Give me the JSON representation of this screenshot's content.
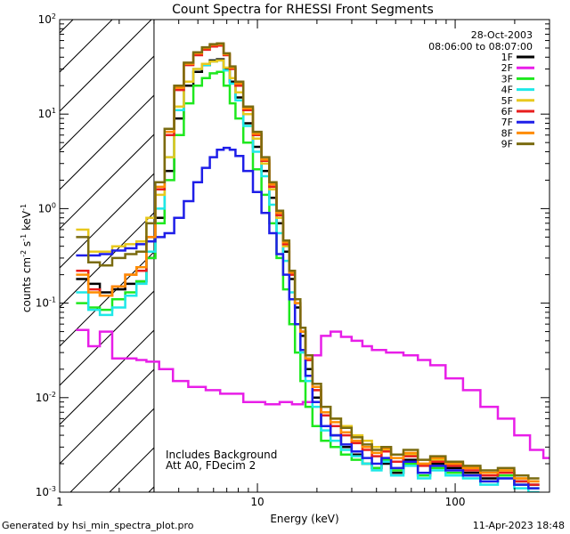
{
  "chart_data": {
    "type": "line",
    "title": "Count Spectra for RHESSI Front Segments",
    "xlabel": "Energy (keV)",
    "ylabel_parts": [
      "counts cm",
      "-2",
      " s",
      "-1",
      " keV",
      "-1"
    ],
    "xscale": "log",
    "yscale": "log",
    "xlim": [
      1,
      300
    ],
    "ylim": [
      0.001,
      100
    ],
    "x_ticks": [
      {
        "value": 1,
        "label": "1"
      },
      {
        "value": 10,
        "label": "10"
      },
      {
        "value": 100,
        "label": "100"
      }
    ],
    "y_ticks": [
      {
        "value": 0.001,
        "base": "10",
        "exp": "-3"
      },
      {
        "value": 0.01,
        "base": "10",
        "exp": "-2"
      },
      {
        "value": 0.1,
        "base": "10",
        "exp": "-1"
      },
      {
        "value": 1,
        "base": "10",
        "exp": "0"
      },
      {
        "value": 10,
        "base": "10",
        "exp": "1"
      },
      {
        "value": 100,
        "base": "10",
        "exp": "2"
      }
    ],
    "hatched_region": {
      "x_from": 1,
      "x_to": 3
    },
    "date_label": "28-Oct-2003",
    "time_label": "08:06:00 to 08:07:00",
    "annotations": [
      "Includes Background",
      "Att A0, FDecim 2"
    ],
    "footer_left": "Generated by hsi_min_spectra_plot.pro",
    "footer_right": "11-Apr-2023 18:48",
    "series": [
      {
        "name": "1F",
        "color": "#000000",
        "x": [
          1.3,
          1.5,
          1.7,
          2.0,
          2.3,
          2.6,
          2.9,
          3.2,
          3.6,
          4.0,
          4.5,
          5.0,
          5.5,
          6.0,
          6.5,
          7.0,
          7.5,
          8.0,
          9.0,
          10,
          11,
          12,
          13,
          14,
          15,
          16,
          17,
          18,
          20,
          22,
          25,
          28,
          32,
          36,
          40,
          45,
          50,
          60,
          70,
          80,
          100,
          120,
          150,
          180,
          220,
          250
        ],
        "y": [
          0.18,
          0.16,
          0.13,
          0.14,
          0.16,
          0.17,
          0.3,
          0.8,
          2.5,
          9,
          20,
          28,
          33,
          37,
          38,
          30,
          22,
          15,
          8,
          4.5,
          2.5,
          1.3,
          0.7,
          0.35,
          0.18,
          0.09,
          0.045,
          0.02,
          0.01,
          0.005,
          0.004,
          0.003,
          0.0025,
          0.002,
          0.0018,
          0.002,
          0.0016,
          0.0022,
          0.0015,
          0.002,
          0.0018,
          0.0016,
          0.0014,
          0.0016,
          0.0013,
          0.0012
        ]
      },
      {
        "name": "2F",
        "color": "#e81ee8",
        "x": [
          1.3,
          1.5,
          1.7,
          2.0,
          2.3,
          2.6,
          2.9,
          3.5,
          4.0,
          5.0,
          6.0,
          7.0,
          8.0,
          9.0,
          10,
          12,
          14,
          16,
          18,
          20,
          22,
          25,
          28,
          32,
          36,
          40,
          50,
          60,
          70,
          80,
          100,
          120,
          150,
          180,
          220,
          260,
          300
        ],
        "y": [
          0.052,
          0.035,
          0.05,
          0.026,
          0.026,
          0.025,
          0.024,
          0.02,
          0.015,
          0.013,
          0.012,
          0.011,
          0.011,
          0.009,
          0.009,
          0.0085,
          0.009,
          0.0085,
          0.009,
          0.028,
          0.045,
          0.05,
          0.044,
          0.04,
          0.035,
          0.032,
          0.03,
          0.028,
          0.025,
          0.022,
          0.016,
          0.012,
          0.008,
          0.006,
          0.004,
          0.0028,
          0.0023
        ]
      },
      {
        "name": "3F",
        "color": "#1ee81e",
        "x": [
          1.3,
          1.5,
          1.7,
          2.0,
          2.3,
          2.6,
          2.9,
          3.2,
          3.6,
          4.0,
          4.5,
          5.0,
          5.5,
          6.0,
          6.5,
          7.0,
          7.5,
          8.0,
          9.0,
          10,
          11,
          12,
          13,
          14,
          15,
          16,
          17,
          18,
          20,
          22,
          25,
          28,
          32,
          36,
          40,
          45,
          50,
          60,
          70,
          80,
          100,
          120,
          150,
          180,
          220,
          250
        ],
        "y": [
          0.1,
          0.09,
          0.085,
          0.11,
          0.13,
          0.17,
          0.3,
          0.7,
          2.0,
          6,
          13,
          20,
          24,
          27,
          28,
          20,
          13,
          9,
          5,
          2.6,
          1.4,
          0.7,
          0.3,
          0.14,
          0.06,
          0.03,
          0.015,
          0.008,
          0.005,
          0.0035,
          0.003,
          0.0025,
          0.0022,
          0.002,
          0.0018,
          0.0022,
          0.0017,
          0.002,
          0.0015,
          0.0018,
          0.0016,
          0.0015,
          0.0013,
          0.0015,
          0.0012,
          0.0011
        ]
      },
      {
        "name": "4F",
        "color": "#1ee8e8",
        "x": [
          1.3,
          1.5,
          1.7,
          2.0,
          2.3,
          2.6,
          2.9,
          3.2,
          3.6,
          4.0,
          4.5,
          5.0,
          5.5,
          6.0,
          6.5,
          7.0,
          7.5,
          8.0,
          9.0,
          10,
          11,
          12,
          13,
          14,
          15,
          16,
          17,
          18,
          20,
          22,
          25,
          28,
          32,
          36,
          40,
          45,
          50,
          60,
          70,
          80,
          100,
          120,
          150,
          180,
          220,
          250
        ],
        "y": [
          0.13,
          0.085,
          0.075,
          0.09,
          0.12,
          0.16,
          0.35,
          1.0,
          3.5,
          11,
          22,
          30,
          33,
          36,
          37,
          29,
          21,
          14,
          7.5,
          4,
          2.2,
          1.1,
          0.55,
          0.28,
          0.13,
          0.06,
          0.03,
          0.015,
          0.008,
          0.0045,
          0.0035,
          0.0028,
          0.0024,
          0.002,
          0.0017,
          0.0021,
          0.0015,
          0.0019,
          0.0014,
          0.0017,
          0.0015,
          0.0014,
          0.0012,
          0.0014,
          0.0011,
          0.001
        ]
      },
      {
        "name": "5F",
        "color": "#e8c81e",
        "x": [
          1.3,
          1.5,
          1.7,
          2.0,
          2.3,
          2.6,
          2.9,
          3.2,
          3.6,
          4.0,
          4.5,
          5.0,
          5.5,
          6.0,
          6.5,
          7.0,
          7.5,
          8.0,
          9.0,
          10,
          11,
          12,
          13,
          14,
          15,
          16,
          17,
          18,
          20,
          22,
          25,
          28,
          32,
          36,
          40,
          45,
          50,
          60,
          70,
          80,
          100,
          120,
          150,
          180,
          220,
          250
        ],
        "y": [
          0.6,
          0.35,
          0.35,
          0.4,
          0.42,
          0.45,
          0.8,
          1.4,
          3.5,
          12,
          22,
          30,
          34,
          36,
          37,
          31,
          24,
          17,
          10,
          5.5,
          3,
          1.6,
          0.8,
          0.4,
          0.2,
          0.1,
          0.05,
          0.025,
          0.012,
          0.007,
          0.006,
          0.005,
          0.004,
          0.0035,
          0.003,
          0.0028,
          0.0025,
          0.0025,
          0.002,
          0.0022,
          0.002,
          0.0018,
          0.0016,
          0.0017,
          0.0014,
          0.0013
        ]
      },
      {
        "name": "6F",
        "color": "#e81e1e",
        "x": [
          1.3,
          1.5,
          1.7,
          2.0,
          2.3,
          2.6,
          2.9,
          3.2,
          3.6,
          4.0,
          4.5,
          5.0,
          5.5,
          6.0,
          6.5,
          7.0,
          7.5,
          8.0,
          9.0,
          10,
          11,
          12,
          13,
          14,
          15,
          16,
          17,
          18,
          20,
          22,
          25,
          28,
          32,
          36,
          40,
          45,
          50,
          60,
          70,
          80,
          100,
          120,
          150,
          180,
          220,
          250
        ],
        "y": [
          0.22,
          0.14,
          0.12,
          0.15,
          0.2,
          0.22,
          0.5,
          1.6,
          6,
          18,
          33,
          42,
          48,
          52,
          53,
          42,
          30,
          20,
          11,
          6,
          3.2,
          1.7,
          0.85,
          0.42,
          0.2,
          0.1,
          0.05,
          0.025,
          0.012,
          0.0065,
          0.005,
          0.004,
          0.0033,
          0.0028,
          0.0024,
          0.0027,
          0.0021,
          0.0024,
          0.0019,
          0.0021,
          0.0019,
          0.0017,
          0.0015,
          0.0016,
          0.0013,
          0.0012
        ]
      },
      {
        "name": "7F",
        "color": "#1e1ee8",
        "x": [
          1.3,
          1.5,
          1.7,
          2.0,
          2.3,
          2.6,
          2.9,
          3.2,
          3.6,
          4.0,
          4.5,
          5.0,
          5.5,
          6.0,
          6.5,
          7.0,
          7.5,
          8.0,
          9.0,
          10,
          11,
          12,
          13,
          14,
          15,
          16,
          17,
          18,
          20,
          22,
          25,
          28,
          32,
          36,
          40,
          45,
          50,
          60,
          70,
          80,
          100,
          120,
          150,
          180,
          220,
          250
        ],
        "y": [
          0.32,
          0.32,
          0.33,
          0.36,
          0.38,
          0.42,
          0.45,
          0.5,
          0.55,
          0.8,
          1.2,
          1.9,
          2.7,
          3.5,
          4.2,
          4.4,
          4.2,
          3.6,
          2.5,
          1.5,
          0.9,
          0.55,
          0.33,
          0.2,
          0.11,
          0.06,
          0.032,
          0.017,
          0.009,
          0.005,
          0.004,
          0.0032,
          0.0027,
          0.0023,
          0.002,
          0.0023,
          0.0018,
          0.0021,
          0.0016,
          0.0019,
          0.0017,
          0.0015,
          0.0013,
          0.0014,
          0.0012,
          0.0011
        ]
      },
      {
        "name": "8F",
        "color": "#ff8c00",
        "x": [
          1.3,
          1.5,
          1.7,
          2.0,
          2.3,
          2.6,
          2.9,
          3.2,
          3.6,
          4.0,
          4.5,
          5.0,
          5.5,
          6.0,
          6.5,
          7.0,
          7.5,
          8.0,
          9.0,
          10,
          11,
          12,
          13,
          14,
          15,
          16,
          17,
          18,
          20,
          22,
          25,
          28,
          32,
          36,
          40,
          45,
          50,
          60,
          70,
          80,
          100,
          120,
          150,
          180,
          220,
          250
        ],
        "y": [
          0.2,
          0.13,
          0.12,
          0.15,
          0.2,
          0.24,
          0.5,
          1.7,
          6.5,
          19,
          34,
          44,
          50,
          54,
          55,
          43,
          31,
          21,
          11.5,
          6.2,
          3.3,
          1.8,
          0.9,
          0.44,
          0.21,
          0.1,
          0.05,
          0.026,
          0.013,
          0.007,
          0.0055,
          0.0043,
          0.0035,
          0.003,
          0.0026,
          0.0029,
          0.0023,
          0.0026,
          0.002,
          0.0023,
          0.002,
          0.0018,
          0.0016,
          0.0017,
          0.0014,
          0.0013
        ]
      },
      {
        "name": "9F",
        "color": "#7a6b10",
        "x": [
          1.3,
          1.5,
          1.7,
          2.0,
          2.3,
          2.6,
          2.9,
          3.2,
          3.6,
          4.0,
          4.5,
          5.0,
          5.5,
          6.0,
          6.5,
          7.0,
          7.5,
          8.0,
          9.0,
          10,
          11,
          12,
          13,
          14,
          15,
          16,
          17,
          18,
          20,
          22,
          25,
          28,
          32,
          36,
          40,
          45,
          50,
          60,
          70,
          80,
          100,
          120,
          150,
          180,
          220,
          250
        ],
        "y": [
          0.5,
          0.27,
          0.25,
          0.3,
          0.33,
          0.35,
          0.7,
          1.9,
          7,
          20,
          35,
          45,
          51,
          55,
          56,
          44,
          32,
          22,
          12,
          6.5,
          3.5,
          1.9,
          0.95,
          0.46,
          0.22,
          0.11,
          0.055,
          0.028,
          0.014,
          0.008,
          0.006,
          0.0048,
          0.0038,
          0.0032,
          0.0028,
          0.003,
          0.0025,
          0.0028,
          0.0022,
          0.0024,
          0.0021,
          0.0019,
          0.0017,
          0.0018,
          0.0015,
          0.0014
        ]
      }
    ]
  }
}
